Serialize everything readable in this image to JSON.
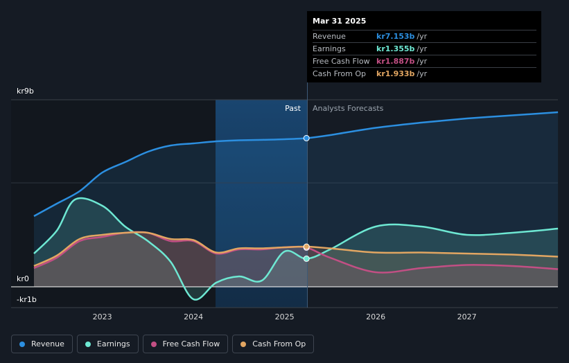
{
  "chart_data": {
    "type": "line",
    "y_axis": {
      "top_label": "kr9b",
      "zero_label": "kr0",
      "bottom_label": "-kr1b",
      "range_billions": [
        -1,
        9
      ]
    },
    "x_ticks": [
      "2023",
      "2024",
      "2025",
      "2026",
      "2027"
    ],
    "sections": {
      "past": "Past",
      "forecast": "Analysts Forecasts"
    },
    "divider_x": 2025.24,
    "series": [
      {
        "name": "Revenue",
        "color": "#2c8fe0",
        "points": [
          [
            2022.25,
            3.4
          ],
          [
            2022.5,
            4.0
          ],
          [
            2022.75,
            4.6
          ],
          [
            2023.0,
            5.5
          ],
          [
            2023.25,
            6.0
          ],
          [
            2023.5,
            6.5
          ],
          [
            2023.75,
            6.8
          ],
          [
            2024.0,
            6.9
          ],
          [
            2024.25,
            7.0
          ],
          [
            2024.5,
            7.05
          ],
          [
            2024.75,
            7.07
          ],
          [
            2025.0,
            7.1
          ],
          [
            2025.24,
            7.153
          ],
          [
            2025.5,
            7.3
          ],
          [
            2026.0,
            7.65
          ],
          [
            2026.5,
            7.9
          ],
          [
            2027.0,
            8.1
          ],
          [
            2027.5,
            8.25
          ],
          [
            2028.0,
            8.4
          ]
        ]
      },
      {
        "name": "Earnings",
        "color": "#6ee8d3",
        "points": [
          [
            2022.25,
            1.6
          ],
          [
            2022.5,
            2.7
          ],
          [
            2022.7,
            4.2
          ],
          [
            2023.0,
            3.9
          ],
          [
            2023.25,
            2.9
          ],
          [
            2023.5,
            2.2
          ],
          [
            2023.75,
            1.2
          ],
          [
            2024.0,
            -0.6
          ],
          [
            2024.25,
            0.2
          ],
          [
            2024.5,
            0.5
          ],
          [
            2024.75,
            0.3
          ],
          [
            2025.0,
            1.7
          ],
          [
            2025.24,
            1.355
          ],
          [
            2025.5,
            1.8
          ],
          [
            2026.0,
            2.9
          ],
          [
            2026.5,
            2.9
          ],
          [
            2027.0,
            2.5
          ],
          [
            2027.5,
            2.6
          ],
          [
            2028.0,
            2.8
          ]
        ]
      },
      {
        "name": "Free Cash Flow",
        "color": "#c24f84",
        "points": [
          [
            2022.25,
            0.9
          ],
          [
            2022.5,
            1.4
          ],
          [
            2022.75,
            2.2
          ],
          [
            2023.0,
            2.4
          ],
          [
            2023.25,
            2.6
          ],
          [
            2023.5,
            2.6
          ],
          [
            2023.75,
            2.2
          ],
          [
            2024.0,
            2.2
          ],
          [
            2024.25,
            1.6
          ],
          [
            2024.5,
            1.8
          ],
          [
            2024.75,
            1.8
          ],
          [
            2025.0,
            1.9
          ],
          [
            2025.24,
            1.887
          ],
          [
            2025.5,
            1.4
          ],
          [
            2026.0,
            0.7
          ],
          [
            2026.5,
            0.9
          ],
          [
            2027.0,
            1.05
          ],
          [
            2027.5,
            1.0
          ],
          [
            2028.0,
            0.85
          ]
        ]
      },
      {
        "name": "Cash From Op",
        "color": "#e2a662",
        "points": [
          [
            2022.25,
            1.0
          ],
          [
            2022.5,
            1.5
          ],
          [
            2022.75,
            2.3
          ],
          [
            2023.0,
            2.5
          ],
          [
            2023.25,
            2.6
          ],
          [
            2023.5,
            2.6
          ],
          [
            2023.75,
            2.3
          ],
          [
            2024.0,
            2.25
          ],
          [
            2024.25,
            1.65
          ],
          [
            2024.5,
            1.85
          ],
          [
            2024.75,
            1.85
          ],
          [
            2025.0,
            1.9
          ],
          [
            2025.24,
            1.933
          ],
          [
            2025.5,
            1.85
          ],
          [
            2026.0,
            1.65
          ],
          [
            2026.5,
            1.65
          ],
          [
            2027.0,
            1.6
          ],
          [
            2027.5,
            1.55
          ],
          [
            2028.0,
            1.45
          ]
        ]
      }
    ]
  },
  "tooltip": {
    "date": "Mar 31 2025",
    "rows": [
      {
        "label": "Revenue",
        "value": "kr7.153b",
        "unit": "/yr",
        "color": "#2c8fe0"
      },
      {
        "label": "Earnings",
        "value": "kr1.355b",
        "unit": "/yr",
        "color": "#6ee8d3"
      },
      {
        "label": "Free Cash Flow",
        "value": "kr1.887b",
        "unit": "/yr",
        "color": "#c24f84"
      },
      {
        "label": "Cash From Op",
        "value": "kr1.933b",
        "unit": "/yr",
        "color": "#e2a662"
      }
    ]
  },
  "legend": [
    {
      "label": "Revenue",
      "color": "#2c8fe0"
    },
    {
      "label": "Earnings",
      "color": "#6ee8d3"
    },
    {
      "label": "Free Cash Flow",
      "color": "#c24f84"
    },
    {
      "label": "Cash From Op",
      "color": "#e2a662"
    }
  ]
}
